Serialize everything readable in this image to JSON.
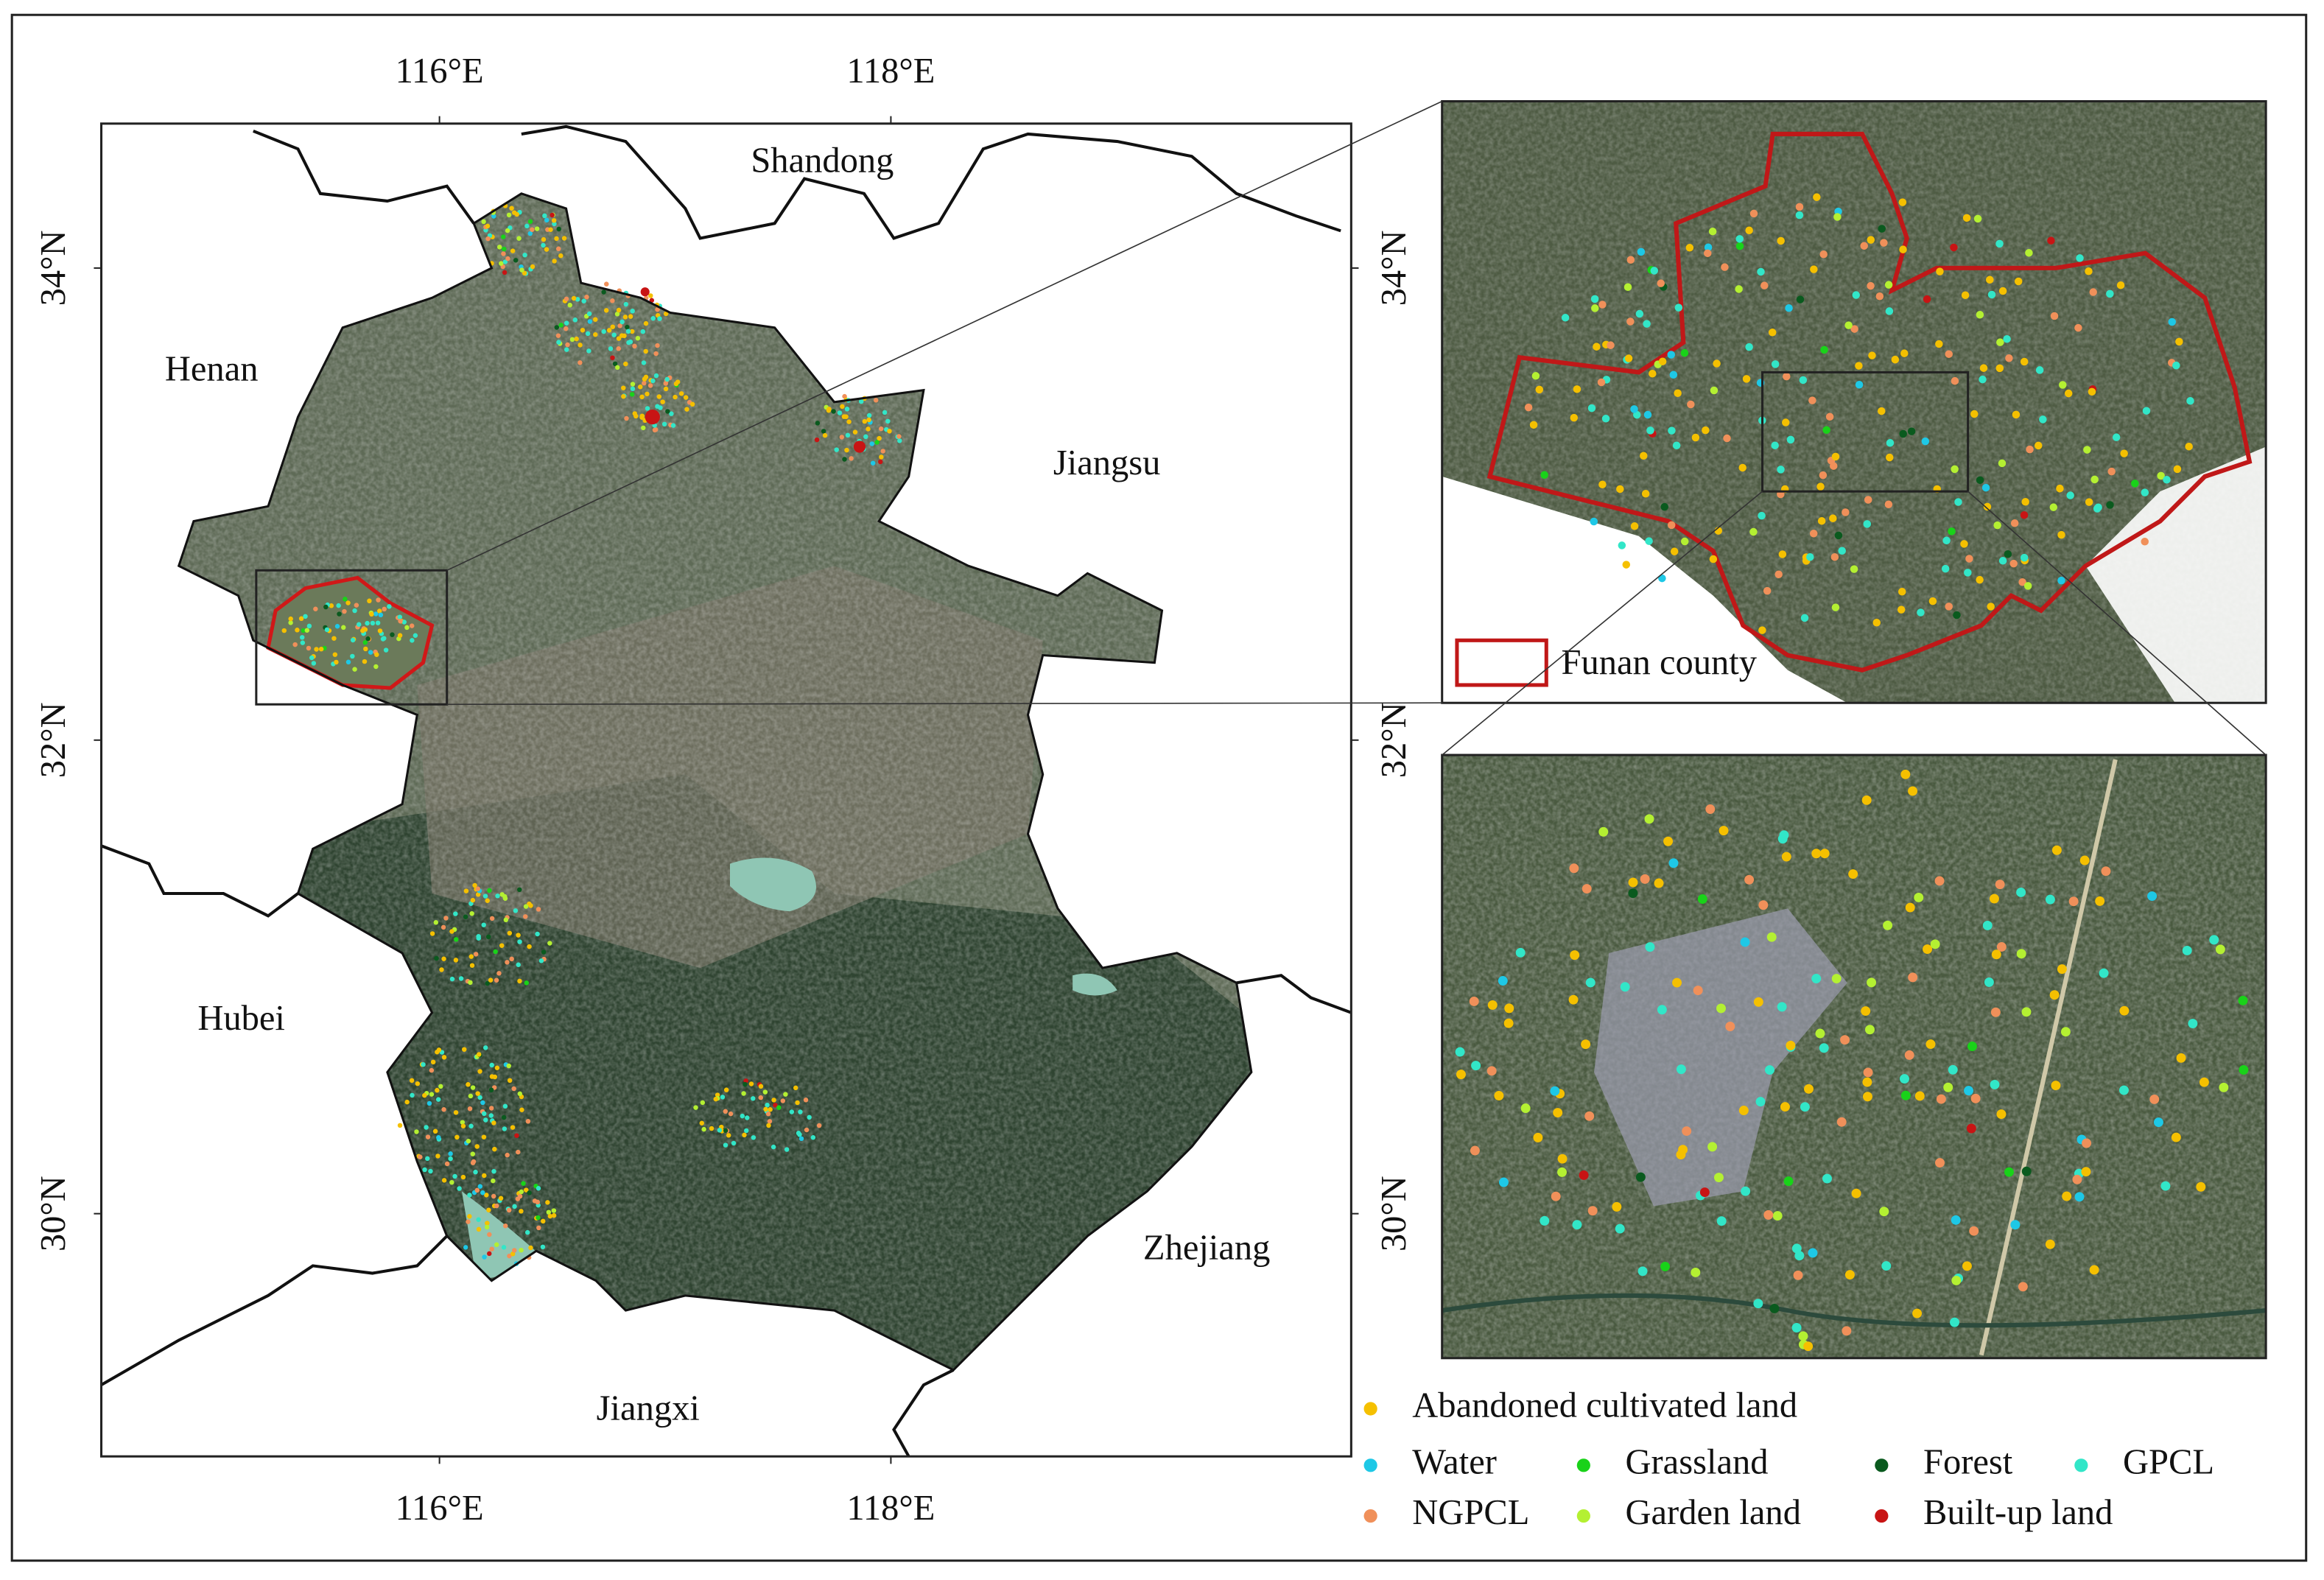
{
  "map": {
    "lon_ticks": [
      "116°E",
      "118°E"
    ],
    "lat_ticks": [
      "34°N",
      "32°N",
      "30°N"
    ],
    "regions": [
      "Shandong",
      "Henan",
      "Jiangsu",
      "Hubei",
      "Zhejiang",
      "Jiangxi"
    ],
    "inset_label": "Funan county",
    "legend": [
      {
        "label": "Abandoned cultivated land",
        "color": "#f5c000"
      },
      {
        "label": "Water",
        "color": "#1ec8e6"
      },
      {
        "label": "Grassland",
        "color": "#19d219"
      },
      {
        "label": "Forest",
        "color": "#0a5a1e"
      },
      {
        "label": "GPCL",
        "color": "#32e6c8"
      },
      {
        "label": "NGPCL",
        "color": "#f0905a"
      },
      {
        "label": "Garden land",
        "color": "#b4f032"
      },
      {
        "label": "Built-up land",
        "color": "#c81414"
      }
    ]
  }
}
